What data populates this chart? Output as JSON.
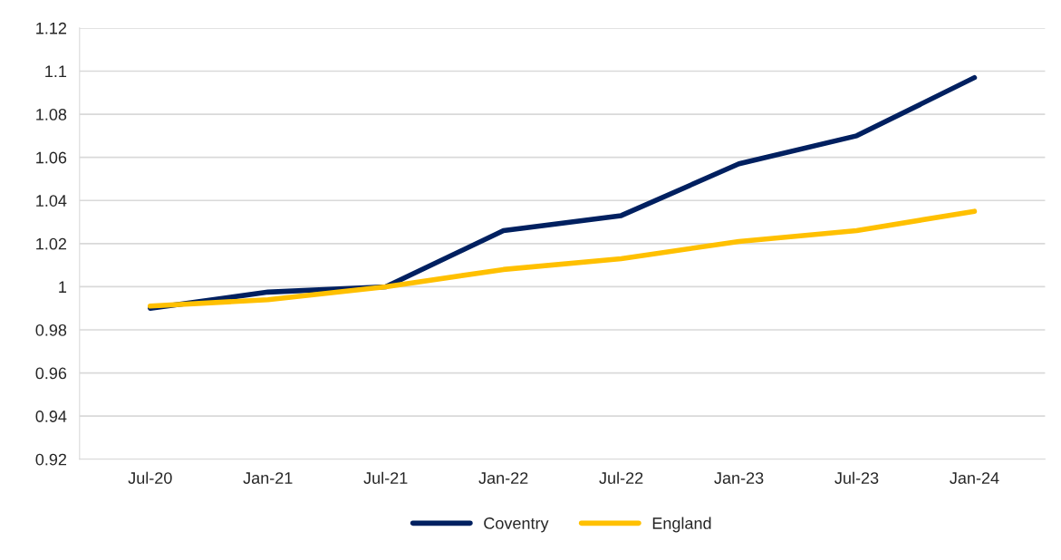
{
  "chart_data": {
    "type": "line",
    "categories": [
      "Jul-20",
      "Jan-21",
      "Jul-21",
      "Jan-22",
      "Jul-22",
      "Jan-23",
      "Jul-23",
      "Jan-24"
    ],
    "series": [
      {
        "name": "Coventry",
        "color": "#002060",
        "values": [
          0.99,
          0.9975,
          1.0,
          1.026,
          1.033,
          1.057,
          1.07,
          1.097
        ]
      },
      {
        "name": "England",
        "color": "#ffc000",
        "values": [
          0.991,
          0.994,
          1.0,
          1.008,
          1.013,
          1.021,
          1.026,
          1.035
        ]
      }
    ],
    "ylim": [
      0.92,
      1.12
    ],
    "yticks": [
      0.92,
      0.94,
      0.96,
      0.98,
      1,
      1.02,
      1.04,
      1.06,
      1.08,
      1.1,
      1.12
    ],
    "grid": "y",
    "legend": "bottom",
    "marker": "none",
    "line_style": "solid"
  }
}
